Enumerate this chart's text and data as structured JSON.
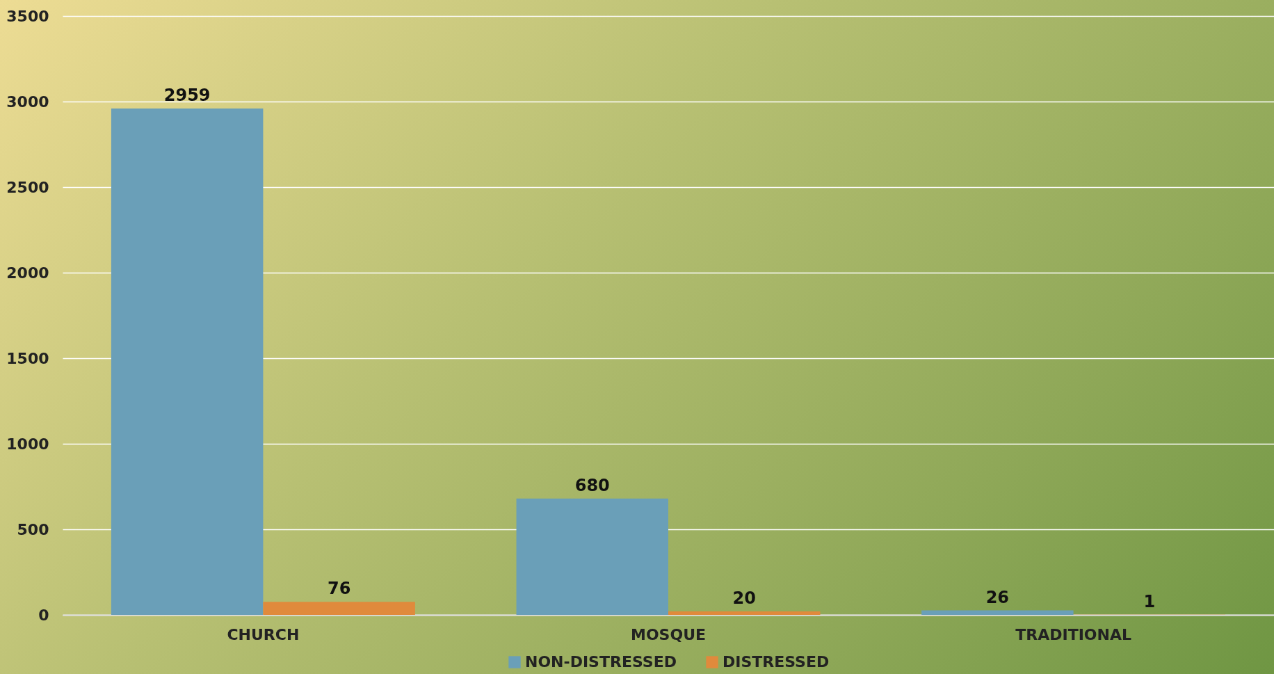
{
  "chart_data": {
    "type": "bar",
    "categories": [
      "CHURCH",
      "MOSQUE",
      "TRADITIONAL"
    ],
    "series": [
      {
        "name": "NON-DISTRESSED",
        "color": "#6a9fb8",
        "values": [
          2959,
          680,
          26
        ]
      },
      {
        "name": "DISTRESSED",
        "color": "#e08a3c",
        "values": [
          76,
          20,
          1
        ]
      }
    ],
    "ylim": [
      0,
      3500
    ],
    "yticks": [
      0,
      500,
      1000,
      1500,
      2000,
      2500,
      3000,
      3500
    ],
    "grid": "y",
    "legend": "bottom",
    "data_labels": true
  }
}
